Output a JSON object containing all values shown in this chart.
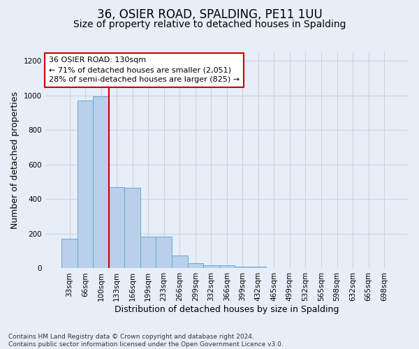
{
  "title": "36, OSIER ROAD, SPALDING, PE11 1UU",
  "subtitle": "Size of property relative to detached houses in Spalding",
  "xlabel": "Distribution of detached houses by size in Spalding",
  "ylabel": "Number of detached properties",
  "categories": [
    "33sqm",
    "66sqm",
    "100sqm",
    "133sqm",
    "166sqm",
    "199sqm",
    "233sqm",
    "266sqm",
    "299sqm",
    "332sqm",
    "366sqm",
    "399sqm",
    "432sqm",
    "465sqm",
    "499sqm",
    "532sqm",
    "565sqm",
    "598sqm",
    "632sqm",
    "665sqm",
    "698sqm"
  ],
  "values": [
    170,
    970,
    995,
    470,
    465,
    185,
    185,
    75,
    30,
    20,
    20,
    10,
    10,
    0,
    0,
    0,
    0,
    0,
    0,
    0,
    0
  ],
  "bar_color": "#b8d0ea",
  "bar_edge_color": "#6aaad4",
  "grid_color": "#c8d4e4",
  "background_color": "#e8eef8",
  "vline_color": "#cc0000",
  "vline_x_index": 3,
  "annotation_text": "36 OSIER ROAD: 130sqm\n← 71% of detached houses are smaller (2,051)\n28% of semi-detached houses are larger (825) →",
  "annotation_box_facecolor": "#ffffff",
  "annotation_box_edgecolor": "#cc0000",
  "ylim": [
    0,
    1250
  ],
  "yticks": [
    0,
    200,
    400,
    600,
    800,
    1000,
    1200
  ],
  "footer": "Contains HM Land Registry data © Crown copyright and database right 2024.\nContains public sector information licensed under the Open Government Licence v3.0.",
  "title_fontsize": 12,
  "subtitle_fontsize": 10,
  "xlabel_fontsize": 9,
  "ylabel_fontsize": 9,
  "tick_fontsize": 7.5,
  "annotation_fontsize": 8,
  "footer_fontsize": 6.5
}
